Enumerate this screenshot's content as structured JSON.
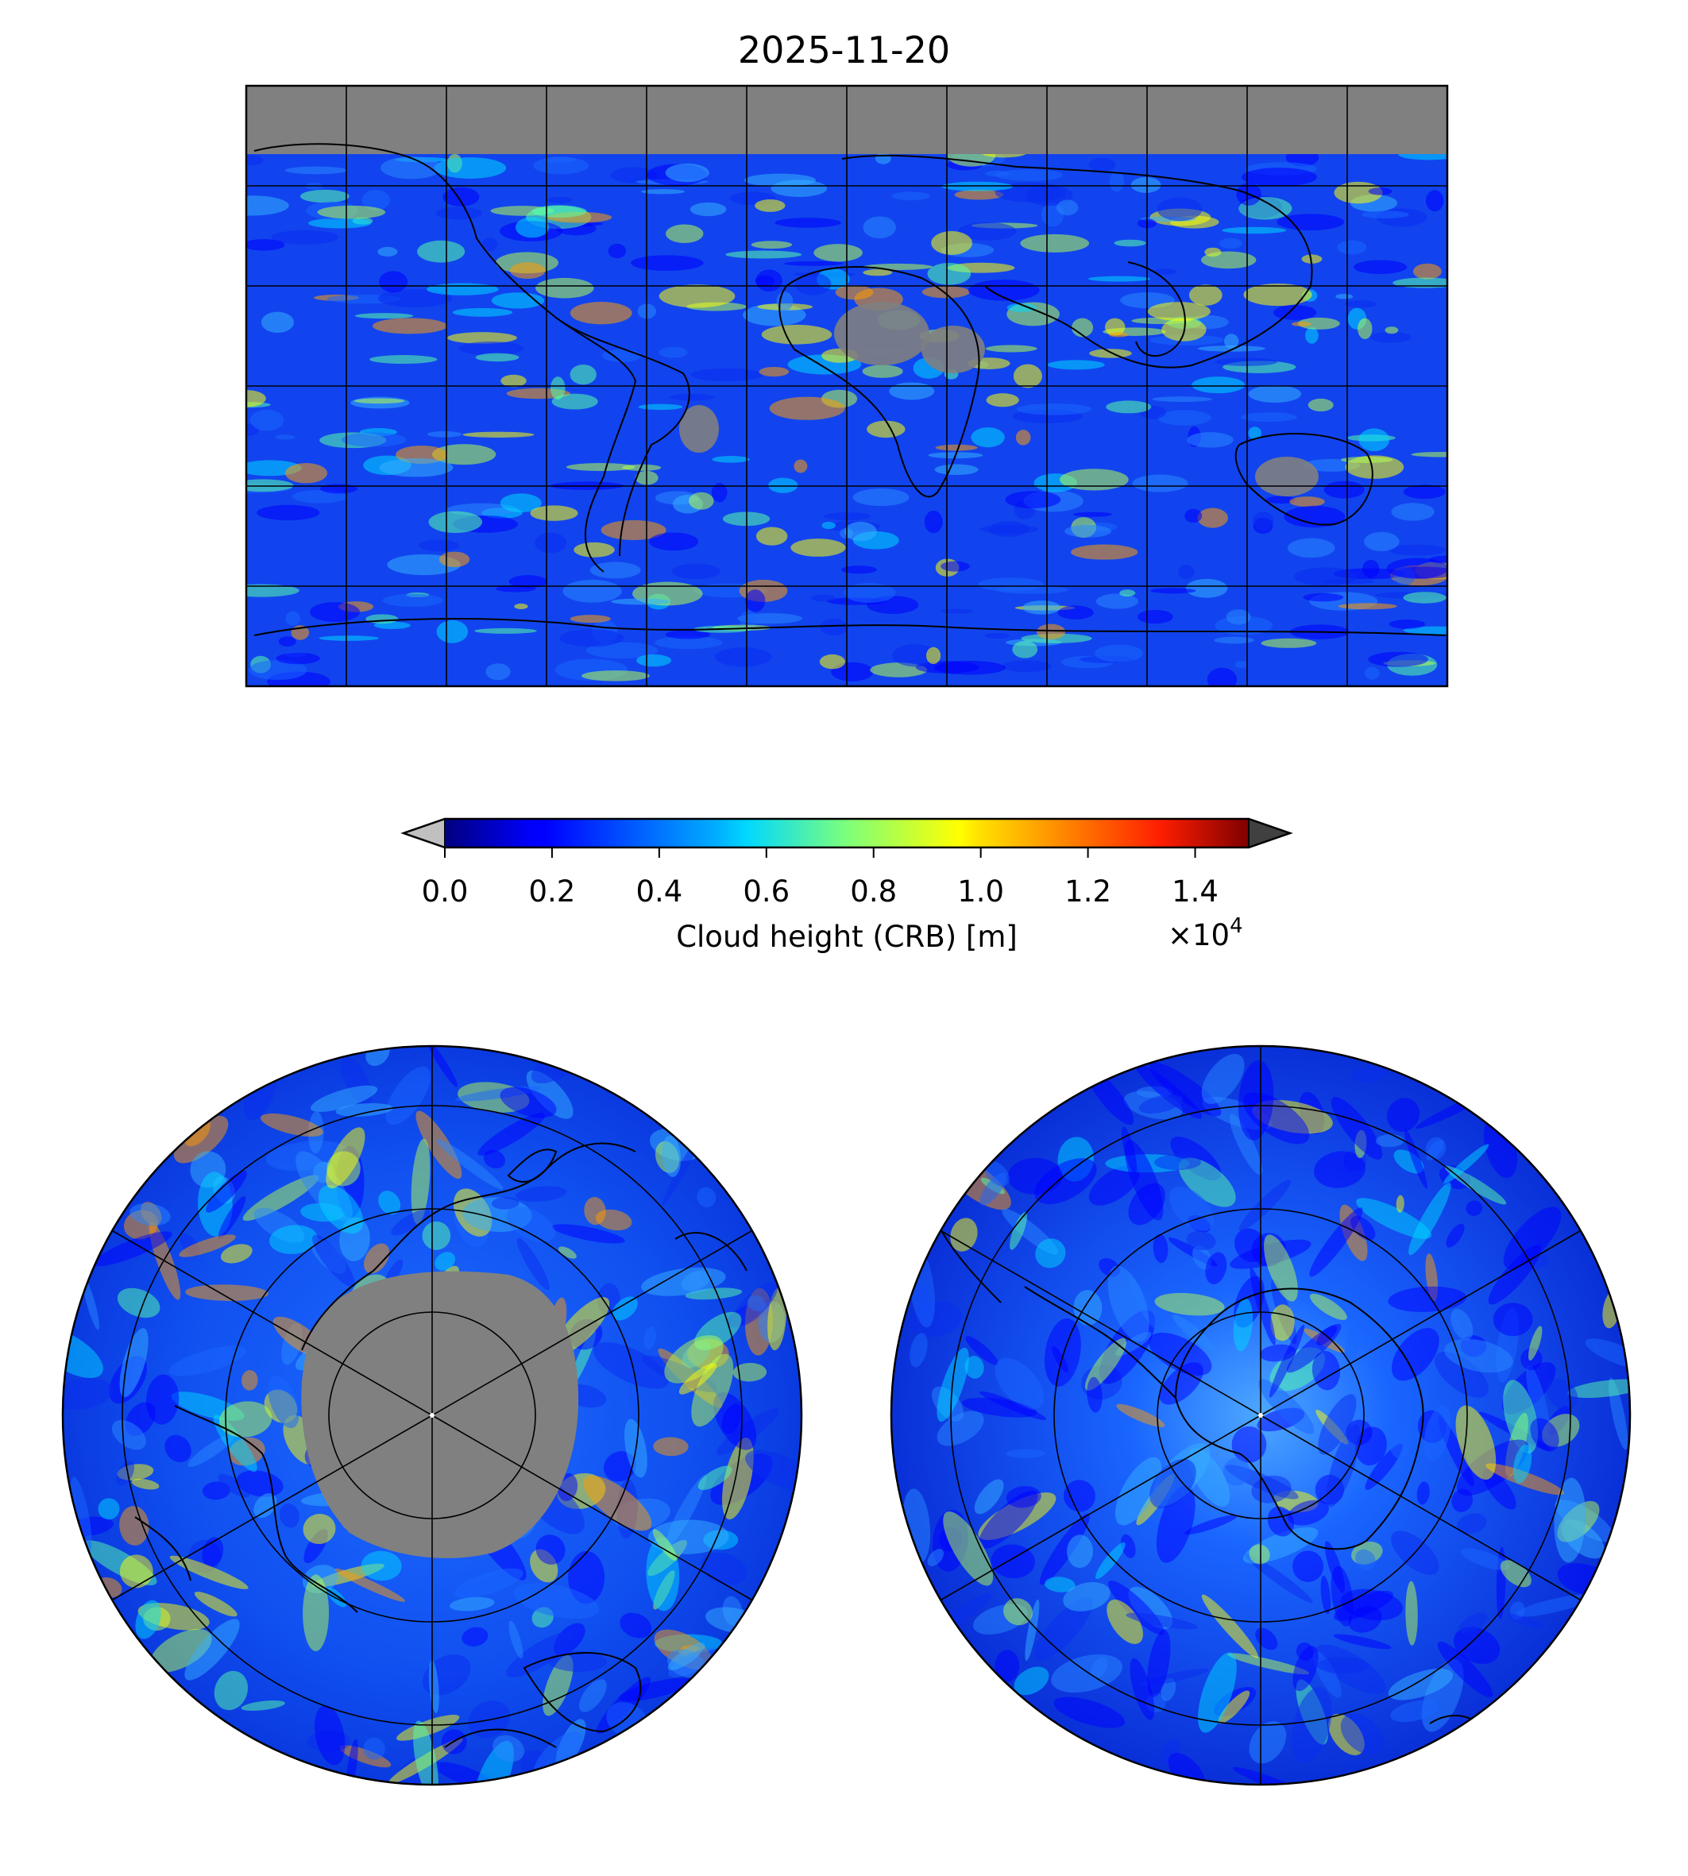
{
  "title": "2025-11-20",
  "colorbar": {
    "label": "Cloud height (CRB) [m]",
    "multiplier_text": "×10",
    "multiplier_exp": "4",
    "ticks": [
      "0.0",
      "0.2",
      "0.4",
      "0.6",
      "0.8",
      "1.0",
      "1.2",
      "1.4"
    ],
    "tick_values": [
      0.0,
      0.2,
      0.4,
      0.6,
      0.8,
      1.0,
      1.2,
      1.4
    ],
    "range": [
      0.0,
      1.5
    ],
    "scale": 10000,
    "colormap": "jet",
    "under_color": "#c0c0c0",
    "over_color": "#404040",
    "no_data_color": "#808080"
  },
  "maps": {
    "global": {
      "projection": "equirectangular",
      "graticule_lon_step": 30,
      "graticule_lat_step": 30
    },
    "north_polar": {
      "projection": "north-polar-stereographic",
      "no_data_cap": true
    },
    "south_polar": {
      "projection": "south-polar-stereographic"
    }
  }
}
